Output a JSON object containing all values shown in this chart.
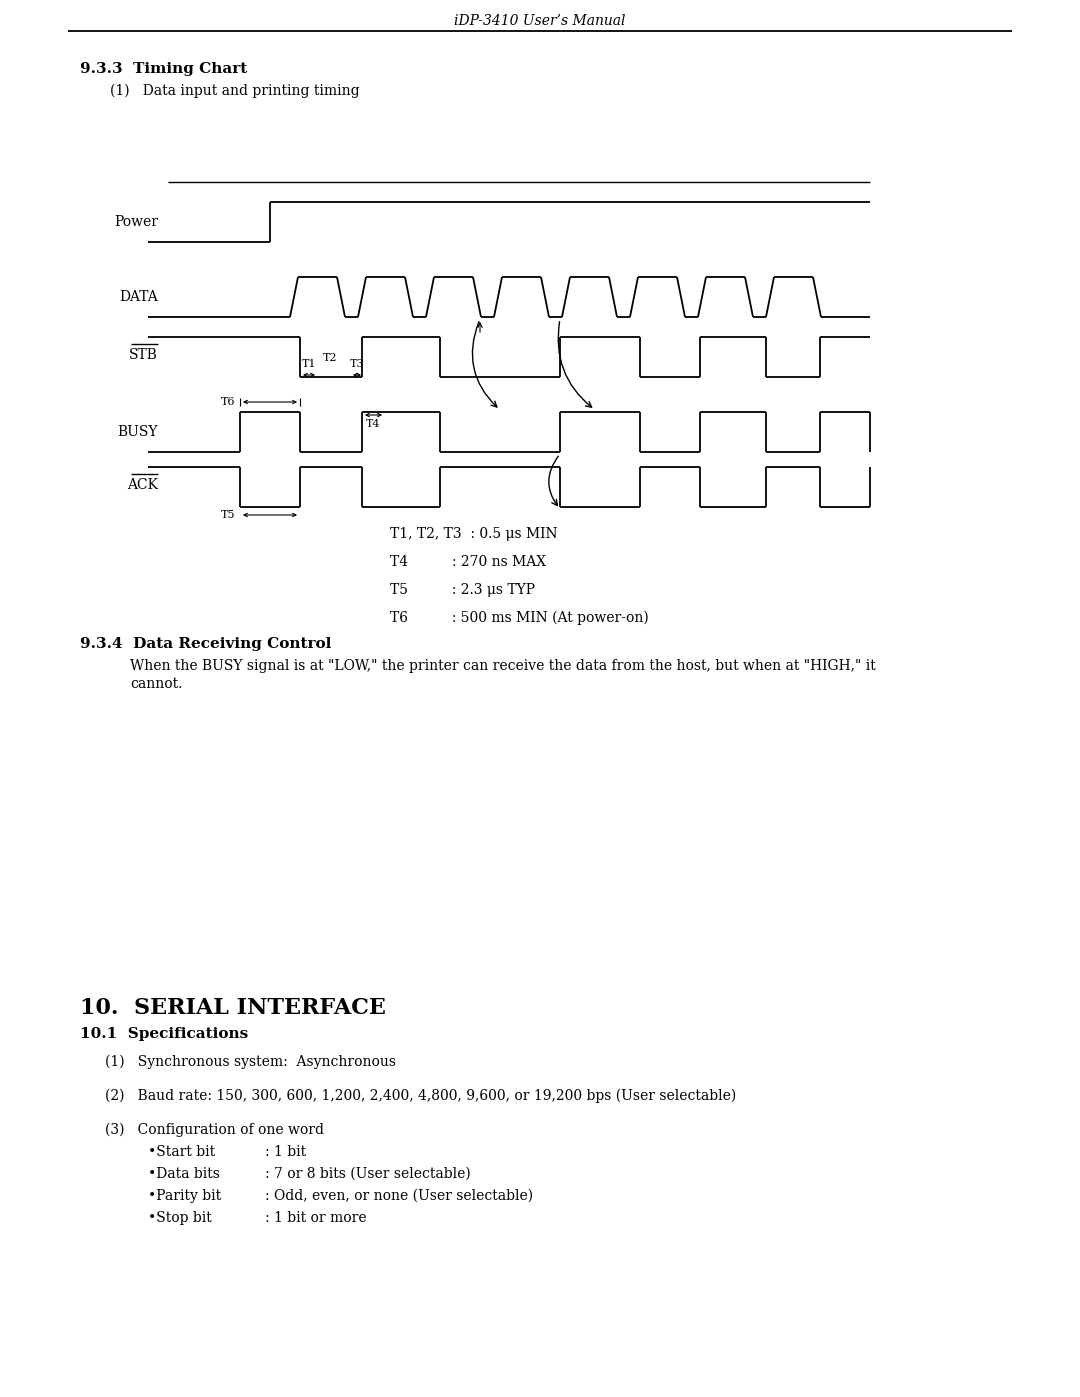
{
  "header_text": "iDP-3410 User’s Manual",
  "section_title": "9.3.3  Timing Chart",
  "subsection": "(1)   Data input and printing timing",
  "section2_title": "9.3.4  Data Receiving Control",
  "section2_body1": "When the BUSY signal is at \"LOW,\" the printer can receive the data from the host, but when at \"HIGH,\" it",
  "section2_body2": "cannot.",
  "serial_title": "10.  SERIAL INTERFACE",
  "serial_sub": "10.1  Specifications",
  "serial_item1": "(1)   Synchronous system:  Asynchronous",
  "serial_item2": "(2)   Baud rate: 150, 300, 600, 1,200, 2,400, 4,800, 9,600, or 19,200 bps (User selectable)",
  "serial_item3": "(3)   Configuration of one word",
  "config_items": [
    [
      "•Start bit",
      ": 1 bit"
    ],
    [
      "•Data bits",
      ": 7 or 8 bits (User selectable)"
    ],
    [
      "•Parity bit",
      ": Odd, even, or none (User selectable)"
    ],
    [
      "•Stop bit",
      ": 1 bit or more"
    ]
  ],
  "t_label1": "T1, T2, T3  : 0.5 μs MIN",
  "t_label2": "T4          : 270 ns MAX",
  "t_label3": "T5          : 2.3 μs TYP",
  "t_label4": "T6          : 500 ms MIN (At power-on)",
  "bg_color": "#ffffff",
  "line_color": "#000000",
  "text_color": "#000000"
}
